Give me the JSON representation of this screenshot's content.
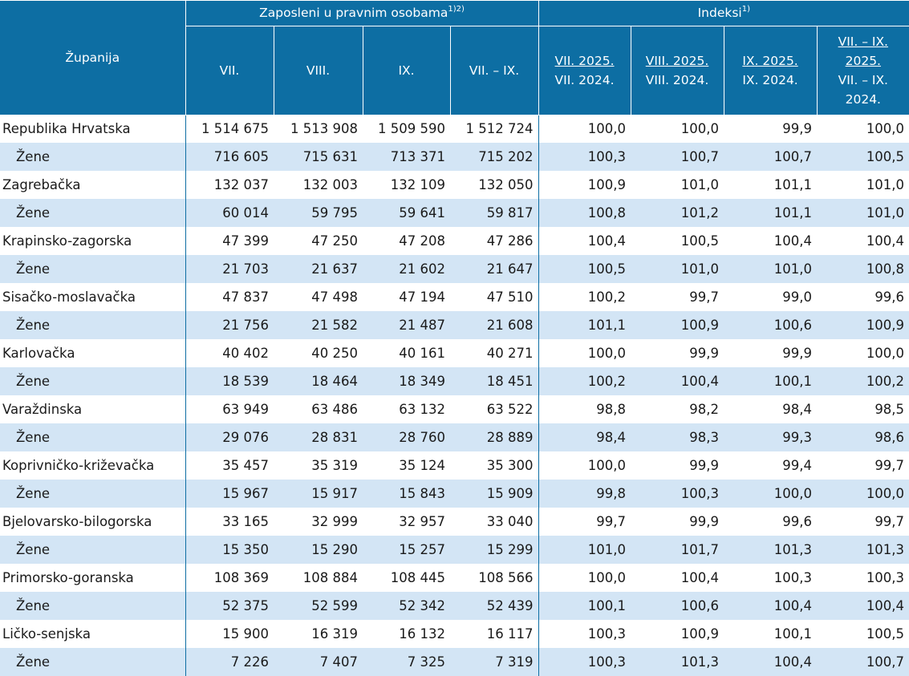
{
  "header": {
    "county_label": "Županija",
    "employed_group": "Zaposleni u pravnim osobama",
    "employed_footnote": "1)2)",
    "index_group": "Indeksi",
    "index_footnote": "1)",
    "employed_columns": [
      "VII.",
      "VIII.",
      "IX.",
      "VII. – IX."
    ],
    "index_columns": [
      {
        "numerator": "VII. 2025.",
        "denominator": "VII. 2024."
      },
      {
        "numerator": "VIII. 2025.",
        "denominator": "VIII. 2024."
      },
      {
        "numerator": "IX. 2025.",
        "denominator": "IX. 2024."
      },
      {
        "numerator": "VII. – IX. 2025.",
        "denominator": "VII. – IX. 2024."
      }
    ]
  },
  "rows": [
    {
      "name": "Republika Hrvatska",
      "women": false,
      "values": [
        "1 514 675",
        "1 513 908",
        "1 509 590",
        "1 512 724",
        "100,0",
        "100,0",
        "99,9",
        "100,0"
      ]
    },
    {
      "name": "Žene",
      "women": true,
      "values": [
        "716 605",
        "715 631",
        "713 371",
        "715 202",
        "100,3",
        "100,7",
        "100,7",
        "100,5"
      ]
    },
    {
      "name": "Zagrebačka",
      "women": false,
      "values": [
        "132 037",
        "132 003",
        "132 109",
        "132 050",
        "100,9",
        "101,0",
        "101,1",
        "101,0"
      ]
    },
    {
      "name": "Žene",
      "women": true,
      "values": [
        "60 014",
        "59 795",
        "59 641",
        "59 817",
        "100,8",
        "101,2",
        "101,1",
        "101,0"
      ]
    },
    {
      "name": "Krapinsko-zagorska",
      "women": false,
      "values": [
        "47 399",
        "47 250",
        "47 208",
        "47 286",
        "100,4",
        "100,5",
        "100,4",
        "100,4"
      ]
    },
    {
      "name": "Žene",
      "women": true,
      "values": [
        "21 703",
        "21 637",
        "21 602",
        "21 647",
        "100,5",
        "101,0",
        "101,0",
        "100,8"
      ]
    },
    {
      "name": "Sisačko-moslavačka",
      "women": false,
      "values": [
        "47 837",
        "47 498",
        "47 194",
        "47 510",
        "100,2",
        "99,7",
        "99,0",
        "99,6"
      ]
    },
    {
      "name": "Žene",
      "women": true,
      "values": [
        "21 756",
        "21 582",
        "21 487",
        "21 608",
        "101,1",
        "100,9",
        "100,6",
        "100,9"
      ]
    },
    {
      "name": "Karlovačka",
      "women": false,
      "values": [
        "40 402",
        "40 250",
        "40 161",
        "40 271",
        "100,0",
        "99,9",
        "99,9",
        "100,0"
      ]
    },
    {
      "name": "Žene",
      "women": true,
      "values": [
        "18 539",
        "18 464",
        "18 349",
        "18 451",
        "100,2",
        "100,4",
        "100,1",
        "100,2"
      ]
    },
    {
      "name": "Varaždinska",
      "women": false,
      "values": [
        "63 949",
        "63 486",
        "63 132",
        "63 522",
        "98,8",
        "98,2",
        "98,4",
        "98,5"
      ]
    },
    {
      "name": "Žene",
      "women": true,
      "values": [
        "29 076",
        "28 831",
        "28 760",
        "28 889",
        "98,4",
        "98,3",
        "99,3",
        "98,6"
      ]
    },
    {
      "name": "Koprivničko-križevačka",
      "women": false,
      "values": [
        "35 457",
        "35 319",
        "35 124",
        "35 300",
        "100,0",
        "99,9",
        "99,4",
        "99,7"
      ]
    },
    {
      "name": "Žene",
      "women": true,
      "values": [
        "15 967",
        "15 917",
        "15 843",
        "15 909",
        "99,8",
        "100,3",
        "100,0",
        "100,0"
      ]
    },
    {
      "name": "Bjelovarsko-bilogorska",
      "women": false,
      "values": [
        "33 165",
        "32 999",
        "32 957",
        "33 040",
        "99,7",
        "99,9",
        "99,6",
        "99,7"
      ]
    },
    {
      "name": "Žene",
      "women": true,
      "values": [
        "15 350",
        "15 290",
        "15 257",
        "15 299",
        "101,0",
        "101,7",
        "101,3",
        "101,3"
      ]
    },
    {
      "name": "Primorsko-goranska",
      "women": false,
      "values": [
        "108 369",
        "108 884",
        "108 445",
        "108 566",
        "100,0",
        "100,4",
        "100,3",
        "100,3"
      ]
    },
    {
      "name": "Žene",
      "women": true,
      "values": [
        "52 375",
        "52 599",
        "52 342",
        "52 439",
        "100,1",
        "100,6",
        "100,4",
        "100,4"
      ]
    },
    {
      "name": "Ličko-senjska",
      "women": false,
      "values": [
        "15 900",
        "16 319",
        "16 132",
        "16 117",
        "100,3",
        "100,9",
        "100,1",
        "100,5"
      ]
    },
    {
      "name": "Žene",
      "women": true,
      "values": [
        "7 226",
        "7 407",
        "7 325",
        "7 319",
        "100,3",
        "101,3",
        "100,4",
        "100,7"
      ]
    }
  ],
  "colors": {
    "header_bg": "#0d6ea3",
    "alt_row_bg": "#d3e5f5"
  }
}
